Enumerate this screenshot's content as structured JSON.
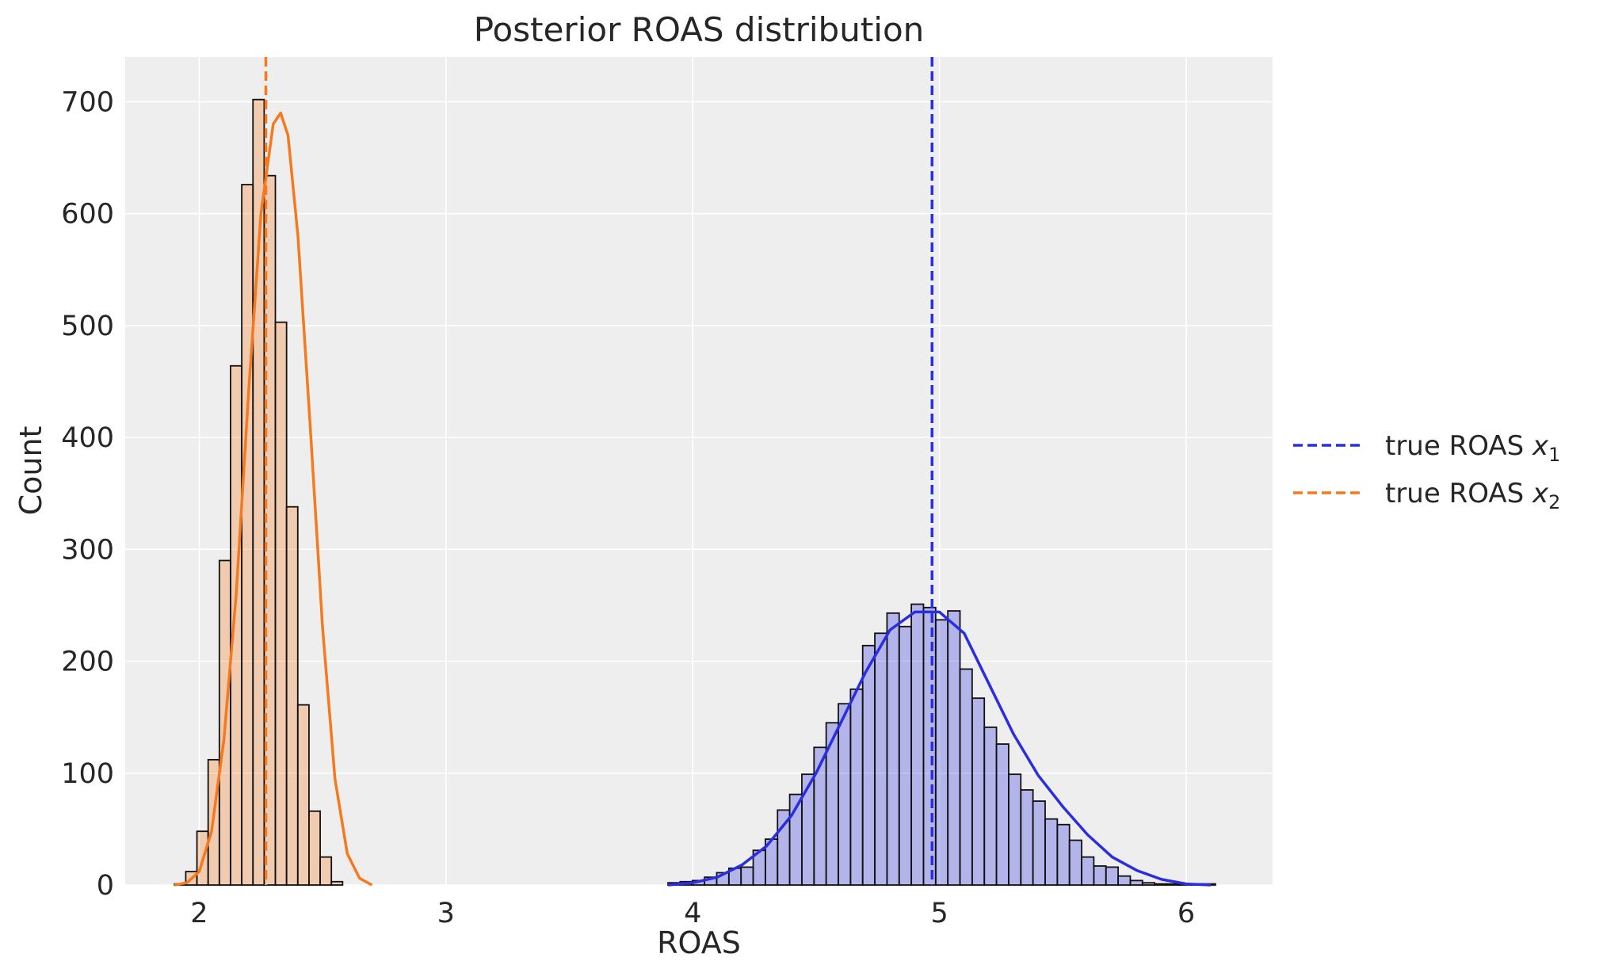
{
  "chart_data": {
    "type": "bar",
    "title": "Posterior ROAS distribution",
    "xlabel": "ROAS",
    "ylabel": "Count",
    "xlim": [
      1.7,
      6.35
    ],
    "ylim": [
      0,
      740
    ],
    "x_ticks": [
      2,
      3,
      4,
      5,
      6
    ],
    "y_ticks": [
      0,
      100,
      200,
      300,
      400,
      500,
      600,
      700
    ],
    "x_tick_labels": [
      "2",
      "3",
      "4",
      "5",
      "6"
    ],
    "y_tick_labels": [
      "0",
      "100",
      "200",
      "300",
      "400",
      "500",
      "600",
      "700"
    ],
    "grid": true,
    "legend_position": "outside-right",
    "legend": [
      {
        "prefix": "true ROAS ",
        "var": "x",
        "sub": "1",
        "color": "#2a2ee0"
      },
      {
        "prefix": "true ROAS ",
        "var": "x",
        "sub": "2",
        "color": "#f5791f"
      }
    ],
    "reference_lines": [
      {
        "x": 4.97,
        "color": "#2a2ee0"
      },
      {
        "x": 2.27,
        "color": "#f5791f"
      }
    ],
    "series": [
      {
        "color": "#f5791f",
        "bin_start": 1.9,
        "bin_width": 0.0454,
        "counts": [
          1,
          12,
          48,
          112,
          290,
          464,
          626,
          702,
          634,
          503,
          338,
          161,
          66,
          25,
          3
        ],
        "kde": [
          [
            1.9,
            0
          ],
          [
            1.95,
            2
          ],
          [
            2.0,
            12
          ],
          [
            2.05,
            48
          ],
          [
            2.1,
            130
          ],
          [
            2.15,
            260
          ],
          [
            2.2,
            440
          ],
          [
            2.25,
            600
          ],
          [
            2.3,
            680
          ],
          [
            2.33,
            690
          ],
          [
            2.36,
            670
          ],
          [
            2.4,
            580
          ],
          [
            2.45,
            410
          ],
          [
            2.5,
            230
          ],
          [
            2.55,
            95
          ],
          [
            2.6,
            28
          ],
          [
            2.65,
            6
          ],
          [
            2.7,
            0
          ]
        ]
      },
      {
        "color": "#2a2ee0",
        "bin_start": 3.9,
        "bin_width": 0.0493,
        "counts": [
          2,
          3,
          4,
          7,
          11,
          15,
          16,
          31,
          41,
          67,
          81,
          99,
          123,
          145,
          162,
          175,
          214,
          225,
          243,
          231,
          251,
          248,
          237,
          245,
          193,
          167,
          141,
          126,
          99,
          85,
          75,
          59,
          54,
          40,
          25,
          17,
          16,
          8,
          4,
          2,
          1,
          1,
          1,
          1,
          1
        ]
      }
    ],
    "kde_blue": [
      [
        3.9,
        0
      ],
      [
        4.0,
        2
      ],
      [
        4.1,
        7
      ],
      [
        4.2,
        18
      ],
      [
        4.3,
        35
      ],
      [
        4.4,
        62
      ],
      [
        4.5,
        100
      ],
      [
        4.6,
        145
      ],
      [
        4.7,
        190
      ],
      [
        4.8,
        228
      ],
      [
        4.9,
        244
      ],
      [
        5.0,
        244
      ],
      [
        5.1,
        225
      ],
      [
        5.2,
        180
      ],
      [
        5.3,
        135
      ],
      [
        5.4,
        98
      ],
      [
        5.5,
        70
      ],
      [
        5.6,
        45
      ],
      [
        5.7,
        25
      ],
      [
        5.8,
        13
      ],
      [
        5.9,
        5
      ],
      [
        6.0,
        1
      ],
      [
        6.1,
        0
      ]
    ]
  }
}
